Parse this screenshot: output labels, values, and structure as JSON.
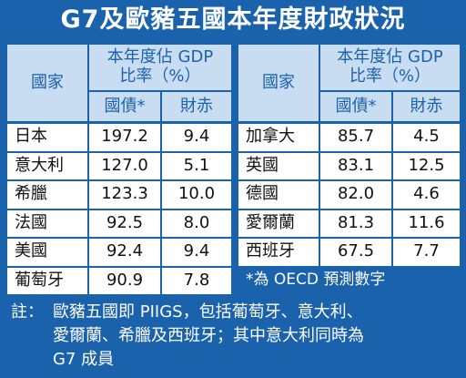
{
  "title": "G7及歐豬五國本年度財政狀況",
  "tables": [
    {
      "header": {
        "country": "國家",
        "ratio": [
          "本年度佔 GDP",
          "比率（%）"
        ],
        "debt": "國債*",
        "deficit": "財赤"
      },
      "rows": [
        [
          "日本",
          "197.2",
          "9.4"
        ],
        [
          "意大利",
          "127.0",
          "5.1"
        ],
        [
          "希臘",
          "123.3",
          "10.0"
        ],
        [
          "法國",
          "92.5",
          "8.0"
        ],
        [
          "美國",
          "92.4",
          "9.4"
        ],
        [
          "葡萄牙",
          "90.9",
          "7.8"
        ]
      ]
    },
    {
      "header": {
        "country": "國家",
        "ratio": [
          "本年度佔 GDP",
          "比率（%）"
        ],
        "debt": "國債*",
        "deficit": "財赤"
      },
      "rows": [
        [
          "加拿大",
          "85.7",
          "4.5"
        ],
        [
          "英國",
          "83.1",
          "12.5"
        ],
        [
          "德國",
          "82.0",
          "4.6"
        ],
        [
          "愛爾蘭",
          "81.3",
          "11.6"
        ],
        [
          "西班牙",
          "67.5",
          "7.7"
        ]
      ],
      "footnote": "*為 OECD 預測數字"
    }
  ],
  "note": {
    "label": "註：",
    "lines": [
      "歐豬五國即 PIIGS，包括葡萄牙、意大利、",
      "愛爾蘭、希臘及西班牙；其中意大利同時為",
      "G7 成員"
    ]
  }
}
